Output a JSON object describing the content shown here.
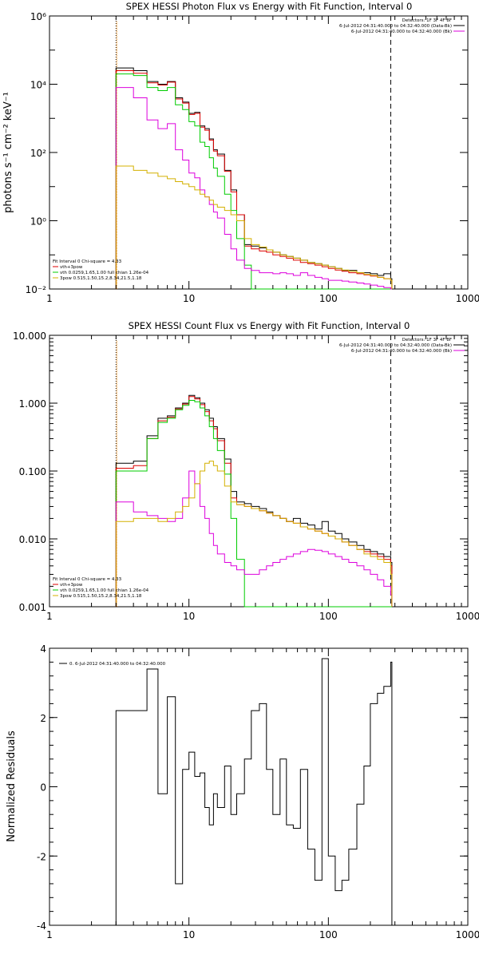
{
  "colors": {
    "data": "#000000",
    "total": "#dd0000",
    "thermal": "#00cc00",
    "power": "#dd00dd",
    "thick": "#d4b000",
    "marker": "#ff8800"
  },
  "chart_data": [
    {
      "type": "line",
      "step": true,
      "xscale": "log",
      "yscale": "log",
      "title": "SPEX HESSI Photon Flux vs Energy with Fit Function, Interval 0",
      "ylabel": "photons s⁻¹ cm⁻² keV⁻¹",
      "xlabel": "",
      "xlim": [
        1,
        1000
      ],
      "ylim": [
        0.01,
        1000000
      ],
      "xticks": [
        "1",
        "10",
        "100",
        "1000"
      ],
      "yticks": [
        "10⁻²",
        "10⁰",
        "10²",
        "10⁴",
        "10⁶"
      ],
      "vlines": [
        {
          "x": 3,
          "style": "dotted"
        },
        {
          "x": 280,
          "style": "dashed"
        }
      ],
      "legend_top": [
        {
          "text": "Detectors: 1F 3F 4F 8F",
          "color": ""
        },
        {
          "text": "6-Jul-2012 04:31:40.000 to 04:32:40.000 (Data-Bk)",
          "color": "#000000"
        },
        {
          "text": "6-Jul-2012 04:31:40.000 to 04:32:40.000 (Bk)",
          "color": "#dd00dd"
        }
      ],
      "legend_bottom": [
        {
          "text": "Fit Interval 0   Chi-square = 4.33",
          "color": ""
        },
        {
          "text": "vth+3pow",
          "color": "#dd0000"
        },
        {
          "text": "vth 0.0259,1.65,1.00  full chian 1.26e-04",
          "color": "#00cc00"
        },
        {
          "text": "3pow 0.515,1.50,15.2,8.34,21.5,1.18",
          "color": "#d4b000"
        }
      ],
      "series": [
        {
          "name": "",
          "color": "#000000",
          "x": [
            3,
            4,
            5,
            6,
            7,
            8,
            9,
            10,
            11,
            12,
            13,
            14,
            15,
            16,
            18,
            20,
            22,
            25,
            28,
            32,
            36,
            40,
            45,
            50,
            56,
            63,
            71,
            80,
            90,
            100,
            112,
            125,
            140,
            160,
            180,
            200,
            225,
            250,
            280
          ],
          "y": [
            30000,
            25000,
            12000,
            10000,
            12000,
            4000,
            3000,
            1400,
            1500,
            600,
            500,
            250,
            120,
            90,
            30,
            8,
            1.5,
            0.2,
            0.18,
            0.16,
            0.14,
            0.12,
            0.1,
            0.09,
            0.08,
            0.07,
            0.06,
            0.055,
            0.05,
            0.045,
            0.04,
            0.035,
            0.035,
            0.03,
            0.03,
            0.028,
            0.025,
            0.028,
            0.02
          ]
        },
        {
          "name": "",
          "color": "#dd0000",
          "x": [
            3,
            4,
            5,
            6,
            7,
            8,
            9,
            10,
            11,
            12,
            13,
            14,
            15,
            16,
            18,
            20,
            22,
            25,
            28,
            32,
            36,
            40,
            45,
            50,
            56,
            63,
            71,
            80,
            90,
            100,
            112,
            125,
            140,
            160,
            180,
            200,
            225,
            250,
            280
          ],
          "y": [
            25000,
            21000,
            11000,
            9500,
            11500,
            3700,
            2800,
            1300,
            1400,
            550,
            450,
            230,
            110,
            80,
            28,
            7,
            1.5,
            0.18,
            0.15,
            0.13,
            0.12,
            0.1,
            0.09,
            0.08,
            0.07,
            0.06,
            0.055,
            0.05,
            0.045,
            0.04,
            0.036,
            0.033,
            0.03,
            0.028,
            0.026,
            0.024,
            0.022,
            0.02,
            0.018
          ]
        },
        {
          "name": "",
          "color": "#00cc00",
          "x": [
            3,
            4,
            5,
            6,
            7,
            8,
            9,
            10,
            11,
            12,
            13,
            14,
            15,
            16,
            18,
            20,
            22,
            25,
            28,
            32,
            36,
            40,
            45,
            50,
            56,
            63,
            71,
            80,
            90,
            100,
            112,
            125,
            140,
            160,
            180,
            200,
            225,
            250,
            280
          ],
          "y": [
            20000,
            18000,
            8000,
            6500,
            8000,
            2500,
            1800,
            800,
            600,
            200,
            150,
            70,
            35,
            20,
            6,
            2,
            0.3,
            0.05,
            0.01,
            0.01,
            0.01,
            0.01,
            0.01,
            0.01,
            0.01,
            0.01,
            0.01,
            0.01,
            0.01,
            0.01,
            0.01,
            0.01,
            0.01,
            0.01,
            0.01,
            0.01,
            0.01,
            0.01,
            0.01
          ]
        },
        {
          "name": "",
          "color": "#dd00dd",
          "x": [
            3,
            4,
            5,
            6,
            7,
            8,
            9,
            10,
            11,
            12,
            13,
            14,
            15,
            16,
            18,
            20,
            22,
            25,
            28,
            32,
            36,
            40,
            45,
            50,
            56,
            63,
            71,
            80,
            90,
            100,
            112,
            125,
            140,
            160,
            180,
            200,
            225,
            250,
            280
          ],
          "y": [
            8000,
            4000,
            900,
            500,
            700,
            120,
            60,
            25,
            18,
            8,
            5,
            3,
            1.8,
            1.2,
            0.4,
            0.15,
            0.07,
            0.04,
            0.035,
            0.03,
            0.03,
            0.028,
            0.03,
            0.028,
            0.025,
            0.03,
            0.025,
            0.022,
            0.02,
            0.018,
            0.018,
            0.017,
            0.016,
            0.015,
            0.014,
            0.013,
            0.012,
            0.011,
            0.01
          ]
        },
        {
          "name": "",
          "color": "#d4b000",
          "x": [
            3,
            4,
            5,
            6,
            7,
            8,
            9,
            10,
            11,
            12,
            13,
            14,
            15,
            16,
            18,
            20,
            22,
            25,
            28,
            32,
            36,
            40,
            45,
            50,
            56,
            63,
            71,
            80,
            90,
            100,
            112,
            125,
            140,
            160,
            180,
            200,
            225,
            250,
            280
          ],
          "y": [
            40,
            30,
            25,
            20,
            17,
            14,
            12,
            10,
            8,
            6,
            5,
            4,
            3,
            2.5,
            2,
            1.5,
            1,
            0.3,
            0.2,
            0.17,
            0.14,
            0.12,
            0.1,
            0.09,
            0.08,
            0.07,
            0.06,
            0.055,
            0.05,
            0.045,
            0.04,
            0.036,
            0.033,
            0.03,
            0.027,
            0.025,
            0.022,
            0.02,
            0.018
          ]
        }
      ]
    },
    {
      "type": "line",
      "step": true,
      "xscale": "log",
      "yscale": "log",
      "title": "SPEX HESSI Count Flux vs Energy with Fit Function, Interval 0",
      "ylabel": "",
      "xlabel": "",
      "xlim": [
        1,
        1000
      ],
      "ylim": [
        0.001,
        10
      ],
      "xticks": [
        "1",
        "10",
        "100",
        "1000"
      ],
      "yticks": [
        "0.001",
        "0.010",
        "0.100",
        "1.000",
        "10.000"
      ],
      "vlines": [
        {
          "x": 3,
          "style": "dotted"
        },
        {
          "x": 280,
          "style": "dashed"
        }
      ],
      "legend_top": [
        {
          "text": "Detectors: 1F 3F 4F 8F",
          "color": ""
        },
        {
          "text": "6-Jul-2012 04:31:40.000 to 04:32:40.000 (Data-Bk)",
          "color": "#000000"
        },
        {
          "text": "6-Jul-2012 04:31:40.000 to 04:32:40.000 (Bk)",
          "color": "#dd00dd"
        }
      ],
      "legend_bottom": [
        {
          "text": "Fit Interval 0   Chi-square = 4.33",
          "color": ""
        },
        {
          "text": "vth+3pow",
          "color": "#dd0000"
        },
        {
          "text": "vth 0.0259,1.65,1.00  full chian 1.26e-04",
          "color": "#00cc00"
        },
        {
          "text": "3pow 0.515,1.50,15.2,8.34,21.5,1.18",
          "color": "#d4b000"
        }
      ],
      "series": [
        {
          "name": "",
          "color": "#000000",
          "x": [
            3,
            4,
            5,
            6,
            7,
            8,
            9,
            10,
            11,
            12,
            13,
            14,
            15,
            16,
            18,
            20,
            22,
            25,
            28,
            32,
            36,
            40,
            45,
            50,
            56,
            63,
            71,
            80,
            90,
            100,
            112,
            125,
            140,
            160,
            180,
            200,
            225,
            250,
            280
          ],
          "y": [
            0.13,
            0.14,
            0.33,
            0.6,
            0.65,
            0.85,
            1.0,
            1.3,
            1.2,
            1.0,
            0.8,
            0.6,
            0.45,
            0.3,
            0.15,
            0.05,
            0.035,
            0.033,
            0.03,
            0.028,
            0.025,
            0.022,
            0.02,
            0.018,
            0.02,
            0.017,
            0.016,
            0.014,
            0.018,
            0.013,
            0.012,
            0.01,
            0.009,
            0.008,
            0.007,
            0.0065,
            0.006,
            0.0055,
            0.0045
          ]
        },
        {
          "name": "",
          "color": "#dd0000",
          "x": [
            3,
            4,
            5,
            6,
            7,
            8,
            9,
            10,
            11,
            12,
            13,
            14,
            15,
            16,
            18,
            20,
            22,
            25,
            28,
            32,
            36,
            40,
            45,
            50,
            56,
            63,
            71,
            80,
            90,
            100,
            112,
            125,
            140,
            160,
            180,
            200,
            225,
            250,
            280
          ],
          "y": [
            0.11,
            0.12,
            0.3,
            0.55,
            0.62,
            0.82,
            0.97,
            1.25,
            1.15,
            0.95,
            0.75,
            0.55,
            0.42,
            0.28,
            0.13,
            0.04,
            0.032,
            0.03,
            0.028,
            0.026,
            0.024,
            0.022,
            0.02,
            0.018,
            0.017,
            0.015,
            0.014,
            0.013,
            0.012,
            0.011,
            0.01,
            0.009,
            0.008,
            0.007,
            0.0065,
            0.006,
            0.0055,
            0.005,
            0.004
          ]
        },
        {
          "name": "",
          "color": "#00cc00",
          "x": [
            3,
            4,
            5,
            6,
            7,
            8,
            9,
            10,
            11,
            12,
            13,
            14,
            15,
            16,
            18,
            20,
            22,
            25,
            28,
            32,
            36,
            40,
            45,
            50,
            56,
            63,
            71,
            80,
            90,
            100,
            112,
            125,
            140,
            160,
            180,
            200,
            225,
            250,
            280
          ],
          "y": [
            0.1,
            0.1,
            0.3,
            0.52,
            0.6,
            0.8,
            0.93,
            1.1,
            1.05,
            0.85,
            0.65,
            0.45,
            0.3,
            0.2,
            0.09,
            0.02,
            0.005,
            0.001,
            0.001,
            0.001,
            0.001,
            0.001,
            0.001,
            0.001,
            0.001,
            0.001,
            0.001,
            0.001,
            0.001,
            0.001,
            0.001,
            0.001,
            0.001,
            0.001,
            0.001,
            0.001,
            0.001,
            0.001,
            0.001
          ]
        },
        {
          "name": "",
          "color": "#dd00dd",
          "x": [
            3,
            4,
            5,
            6,
            7,
            8,
            9,
            10,
            11,
            12,
            13,
            14,
            15,
            16,
            18,
            20,
            22,
            25,
            28,
            32,
            36,
            40,
            45,
            50,
            56,
            63,
            71,
            80,
            90,
            100,
            112,
            125,
            140,
            160,
            180,
            200,
            225,
            250,
            280
          ],
          "y": [
            0.035,
            0.025,
            0.022,
            0.02,
            0.018,
            0.02,
            0.04,
            0.1,
            0.065,
            0.03,
            0.02,
            0.012,
            0.008,
            0.006,
            0.0045,
            0.004,
            0.0035,
            0.003,
            0.003,
            0.0035,
            0.004,
            0.0045,
            0.005,
            0.0055,
            0.006,
            0.0065,
            0.007,
            0.0068,
            0.0065,
            0.006,
            0.0055,
            0.005,
            0.0045,
            0.004,
            0.0035,
            0.003,
            0.0025,
            0.002,
            0.0015
          ]
        },
        {
          "name": "",
          "color": "#d4b000",
          "x": [
            3,
            4,
            5,
            6,
            7,
            8,
            9,
            10,
            11,
            12,
            13,
            14,
            15,
            16,
            18,
            20,
            22,
            25,
            28,
            32,
            36,
            40,
            45,
            50,
            56,
            63,
            71,
            80,
            90,
            100,
            112,
            125,
            140,
            160,
            180,
            200,
            225,
            250,
            280
          ],
          "y": [
            0.018,
            0.02,
            0.02,
            0.018,
            0.02,
            0.025,
            0.03,
            0.04,
            0.065,
            0.1,
            0.13,
            0.14,
            0.12,
            0.1,
            0.06,
            0.035,
            0.032,
            0.03,
            0.028,
            0.026,
            0.024,
            0.022,
            0.02,
            0.018,
            0.017,
            0.015,
            0.014,
            0.013,
            0.012,
            0.011,
            0.01,
            0.009,
            0.008,
            0.007,
            0.006,
            0.0055,
            0.005,
            0.0045,
            0.003
          ]
        }
      ]
    },
    {
      "type": "line",
      "step": true,
      "xscale": "log",
      "yscale": "linear",
      "title": "",
      "ylabel": "Normalized Residuals",
      "xlabel": "",
      "xlim": [
        1,
        1000
      ],
      "ylim": [
        -4,
        4
      ],
      "xticks": [
        "1",
        "10",
        "100",
        "1000"
      ],
      "yticks": [
        "-4",
        "-2",
        "0",
        "2",
        "4"
      ],
      "legend_top": [
        {
          "text": "0.  6-Jul-2012 04:31:40.000 to 04:32:40.000",
          "color": "#000000"
        }
      ],
      "series": [
        {
          "name": "",
          "color": "#000000",
          "x": [
            3,
            4,
            5,
            6,
            7,
            8,
            9,
            10,
            11,
            12,
            13,
            14,
            15,
            16,
            18,
            20,
            22,
            25,
            28,
            32,
            36,
            40,
            45,
            50,
            56,
            63,
            71,
            80,
            90,
            100,
            112,
            125,
            140,
            160,
            180,
            200,
            225,
            250,
            280
          ],
          "y": [
            2.2,
            2.2,
            3.4,
            -0.2,
            2.6,
            -2.8,
            0.5,
            1.0,
            0.3,
            0.4,
            -0.6,
            -1.1,
            -0.2,
            -0.6,
            0.6,
            -0.8,
            -0.2,
            0.8,
            2.2,
            2.4,
            0.5,
            -0.8,
            0.8,
            -1.1,
            -1.2,
            0.5,
            -1.8,
            -2.7,
            3.7,
            -2.0,
            -3.0,
            -2.7,
            -1.8,
            -0.5,
            0.6,
            2.4,
            2.7,
            2.9,
            3.6
          ]
        }
      ]
    }
  ]
}
